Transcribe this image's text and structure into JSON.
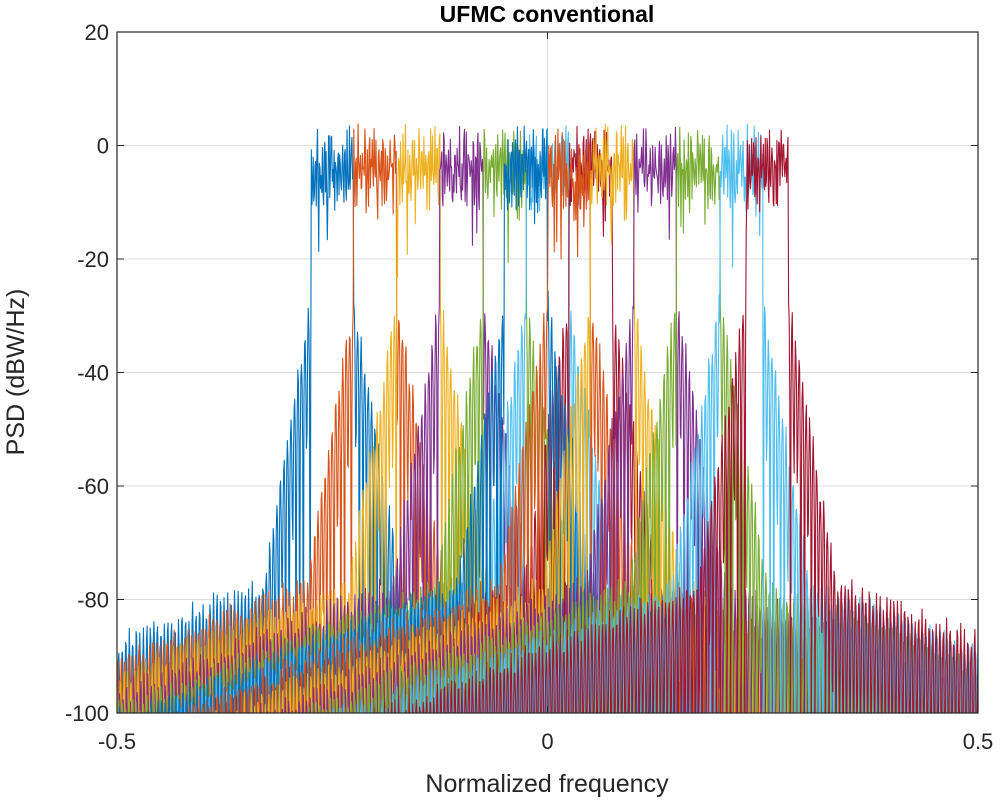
{
  "chart_data": {
    "type": "line",
    "title": "UFMC conventional",
    "xlabel": "Normalized frequency",
    "ylabel": "PSD (dBW/Hz)",
    "xlim": [
      -0.5,
      0.5
    ],
    "ylim": [
      -100,
      20
    ],
    "xticks": [
      -0.5,
      0,
      0.5
    ],
    "xtick_labels": [
      "-0.5",
      "0",
      "0.5"
    ],
    "yticks": [
      20,
      0,
      -20,
      -40,
      -60,
      -80,
      -100
    ],
    "ytick_labels": [
      "20",
      "0",
      "-20",
      "-40",
      "-60",
      "-80",
      "-100"
    ],
    "grid": true,
    "legend": "none",
    "subband_width": 0.05,
    "inband_level_db": 0,
    "floor_level_db": -80,
    "series": [
      {
        "center": -0.25,
        "color": "#0072BD"
      },
      {
        "center": -0.2,
        "color": "#D95319"
      },
      {
        "center": -0.15,
        "color": "#EDB120"
      },
      {
        "center": -0.1,
        "color": "#7E2F8E"
      },
      {
        "center": -0.05,
        "color": "#77AC30"
      },
      {
        "center": 0.0,
        "color": "#4DBEEE"
      },
      {
        "center": 0.05,
        "color": "#A2142F"
      },
      {
        "center": -0.025,
        "color": "#0072BD"
      },
      {
        "center": 0.025,
        "color": "#D95319"
      },
      {
        "center": 0.075,
        "color": "#EDB120"
      },
      {
        "center": 0.125,
        "color": "#7E2F8E"
      },
      {
        "center": 0.175,
        "color": "#77AC30"
      },
      {
        "center": 0.225,
        "color": "#4DBEEE"
      },
      {
        "center": 0.255,
        "color": "#A2142F"
      }
    ]
  }
}
